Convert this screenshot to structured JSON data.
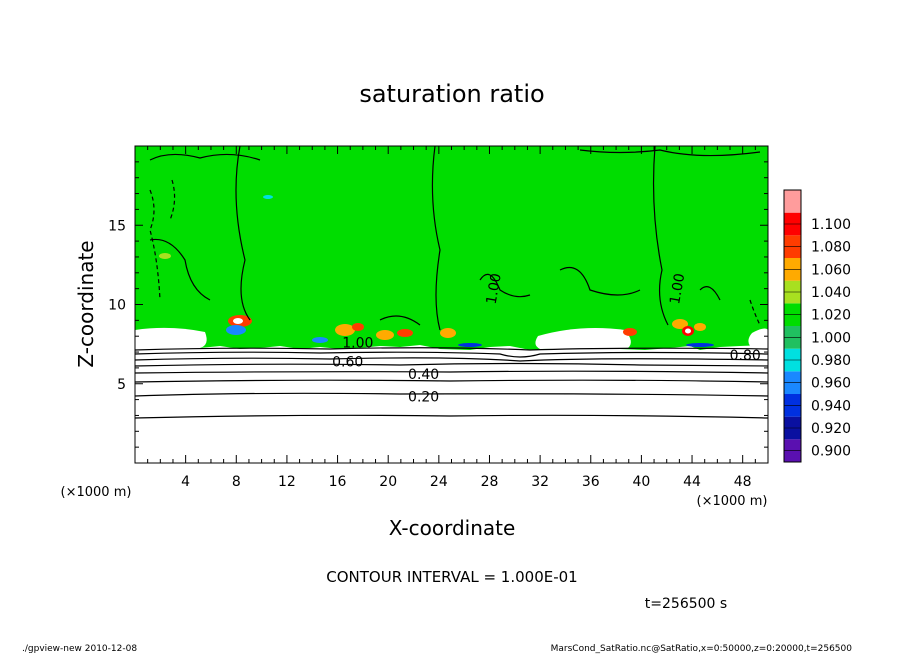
{
  "chart_data": {
    "type": "heatmap",
    "title": "saturation ratio",
    "xlabel": "X-coordinate",
    "ylabel": "Z-coordinate",
    "x_unit": "(×1000 m)",
    "z_unit": "(×1000 m)",
    "xlim": [
      0,
      50
    ],
    "ylim": [
      0,
      20
    ],
    "x_ticks": [
      4,
      8,
      12,
      16,
      20,
      24,
      28,
      32,
      36,
      40,
      44,
      48
    ],
    "y_ticks": [
      5,
      10,
      15
    ],
    "colorbar": {
      "levels": [
        "0.900",
        "0.920",
        "0.940",
        "0.960",
        "0.980",
        "1.000",
        "1.020",
        "1.040",
        "1.060",
        "1.080",
        "1.100"
      ],
      "colors": [
        "#5a10b0",
        "#0a10a0",
        "#0030e0",
        "#1a88ff",
        "#00e0e0",
        "#20c060",
        "#00dd00",
        "#a8e020",
        "#ffaa00",
        "#ff3c00",
        "#ff0000",
        "#ff9c9c"
      ]
    },
    "contour_labels": [
      {
        "text": "0.20",
        "x": 22.8,
        "z": 4.2
      },
      {
        "text": "0.40",
        "x": 22.8,
        "z": 5.6
      },
      {
        "text": "0.60",
        "x": 16.8,
        "z": 6.4
      },
      {
        "text": "0.80",
        "x": 48.2,
        "z": 6.8
      },
      {
        "text": "1.00",
        "x": 17.6,
        "z": 7.6
      },
      {
        "text": "1.00",
        "x": 28.3,
        "z": 11.0
      },
      {
        "text": "1.00",
        "x": 42.8,
        "z": 11.0
      }
    ],
    "contour_interval": "CONTOUR INTERVAL = 1.000E-01",
    "time": "t=256500 s"
  },
  "footer": {
    "left": "./gpview-new   2010-12-08",
    "right": "MarsCond_SatRatio.nc@SatRatio,x=0:50000,z=0:20000,t=256500"
  }
}
